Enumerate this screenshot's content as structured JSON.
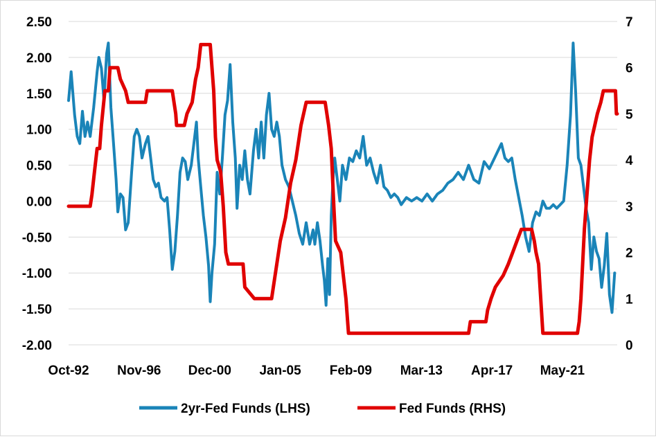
{
  "chart_data": {
    "type": "line",
    "left_axis": {
      "label": "",
      "ylim": [
        -2.0,
        2.5
      ],
      "ticks": [
        "2.50",
        "2.00",
        "1.50",
        "1.00",
        "0.50",
        "0.00",
        "-0.50",
        "-1.00",
        "-1.50",
        "-2.00"
      ]
    },
    "right_axis": {
      "label": "",
      "ylim": [
        0,
        7
      ],
      "ticks": [
        "7",
        "6",
        "5",
        "4",
        "3",
        "2",
        "1",
        "0"
      ]
    },
    "x_axis": {
      "label": "",
      "range": [
        1992.75,
        2024.5
      ],
      "tick_labels": [
        "Oct-92",
        "Nov-96",
        "Dec-00",
        "Jan-05",
        "Feb-09",
        "Mar-13",
        "Apr-17",
        "May-21"
      ],
      "tick_values": [
        1992.75,
        1996.83,
        2000.92,
        2005.0,
        2009.08,
        2013.17,
        2017.25,
        2021.33
      ]
    },
    "grid": "horizontal",
    "legend_position": "bottom",
    "series": [
      {
        "name": "2yr-Fed Funds (LHS)",
        "axis": "left",
        "color": "#1a84b8",
        "points": [
          [
            1992.75,
            1.4
          ],
          [
            1992.9,
            1.8
          ],
          [
            1993.1,
            1.2
          ],
          [
            1993.25,
            0.9
          ],
          [
            1993.4,
            0.8
          ],
          [
            1993.55,
            1.25
          ],
          [
            1993.7,
            0.9
          ],
          [
            1993.85,
            1.1
          ],
          [
            1994.0,
            0.9
          ],
          [
            1994.2,
            1.3
          ],
          [
            1994.4,
            1.8
          ],
          [
            1994.5,
            2.0
          ],
          [
            1994.65,
            1.85
          ],
          [
            1994.8,
            1.4
          ],
          [
            1994.95,
            2.05
          ],
          [
            1995.05,
            2.2
          ],
          [
            1995.2,
            1.3
          ],
          [
            1995.35,
            0.8
          ],
          [
            1995.5,
            0.3
          ],
          [
            1995.6,
            -0.15
          ],
          [
            1995.75,
            0.1
          ],
          [
            1995.9,
            0.05
          ],
          [
            1996.05,
            -0.4
          ],
          [
            1996.2,
            -0.3
          ],
          [
            1996.4,
            0.4
          ],
          [
            1996.55,
            0.9
          ],
          [
            1996.7,
            1.0
          ],
          [
            1996.85,
            0.9
          ],
          [
            1997.0,
            0.6
          ],
          [
            1997.2,
            0.8
          ],
          [
            1997.35,
            0.9
          ],
          [
            1997.5,
            0.6
          ],
          [
            1997.65,
            0.3
          ],
          [
            1997.8,
            0.2
          ],
          [
            1997.95,
            0.25
          ],
          [
            1998.1,
            0.05
          ],
          [
            1998.3,
            0.0
          ],
          [
            1998.45,
            0.05
          ],
          [
            1998.6,
            -0.4
          ],
          [
            1998.75,
            -0.95
          ],
          [
            1998.9,
            -0.7
          ],
          [
            1999.05,
            -0.2
          ],
          [
            1999.2,
            0.4
          ],
          [
            1999.35,
            0.6
          ],
          [
            1999.5,
            0.55
          ],
          [
            1999.65,
            0.3
          ],
          [
            1999.85,
            0.5
          ],
          [
            2000.05,
            0.9
          ],
          [
            2000.15,
            1.1
          ],
          [
            2000.25,
            0.6
          ],
          [
            2000.4,
            0.2
          ],
          [
            2000.55,
            -0.2
          ],
          [
            2000.7,
            -0.5
          ],
          [
            2000.85,
            -0.9
          ],
          [
            2000.95,
            -1.4
          ],
          [
            2001.05,
            -1.0
          ],
          [
            2001.2,
            -0.6
          ],
          [
            2001.35,
            0.4
          ],
          [
            2001.5,
            0.1
          ],
          [
            2001.65,
            0.6
          ],
          [
            2001.8,
            1.2
          ],
          [
            2001.95,
            1.4
          ],
          [
            2002.1,
            1.9
          ],
          [
            2002.25,
            1.1
          ],
          [
            2002.4,
            0.6
          ],
          [
            2002.5,
            -0.1
          ],
          [
            2002.65,
            0.5
          ],
          [
            2002.8,
            0.3
          ],
          [
            2002.95,
            0.7
          ],
          [
            2003.1,
            0.3
          ],
          [
            2003.25,
            0.1
          ],
          [
            2003.45,
            0.7
          ],
          [
            2003.6,
            1.0
          ],
          [
            2003.75,
            0.6
          ],
          [
            2003.9,
            1.1
          ],
          [
            2004.05,
            0.6
          ],
          [
            2004.2,
            1.2
          ],
          [
            2004.35,
            1.5
          ],
          [
            2004.5,
            1.0
          ],
          [
            2004.65,
            0.9
          ],
          [
            2004.8,
            1.1
          ],
          [
            2004.95,
            0.9
          ],
          [
            2005.1,
            0.5
          ],
          [
            2005.3,
            0.3
          ],
          [
            2005.5,
            0.2
          ],
          [
            2005.7,
            0.0
          ],
          [
            2005.9,
            -0.2
          ],
          [
            2006.1,
            -0.45
          ],
          [
            2006.3,
            -0.6
          ],
          [
            2006.5,
            -0.3
          ],
          [
            2006.7,
            -0.6
          ],
          [
            2006.9,
            -0.4
          ],
          [
            2007.0,
            -0.6
          ],
          [
            2007.15,
            -0.3
          ],
          [
            2007.3,
            -0.55
          ],
          [
            2007.45,
            -0.9
          ],
          [
            2007.55,
            -1.1
          ],
          [
            2007.65,
            -1.45
          ],
          [
            2007.75,
            -0.8
          ],
          [
            2007.85,
            -1.3
          ],
          [
            2007.95,
            -0.2
          ],
          [
            2008.05,
            0.3
          ],
          [
            2008.15,
            0.6
          ],
          [
            2008.3,
            0.3
          ],
          [
            2008.45,
            0.0
          ],
          [
            2008.6,
            0.5
          ],
          [
            2008.8,
            0.3
          ],
          [
            2009.0,
            0.6
          ],
          [
            2009.2,
            0.55
          ],
          [
            2009.4,
            0.7
          ],
          [
            2009.6,
            0.6
          ],
          [
            2009.8,
            0.9
          ],
          [
            2010.0,
            0.5
          ],
          [
            2010.2,
            0.6
          ],
          [
            2010.4,
            0.4
          ],
          [
            2010.6,
            0.25
          ],
          [
            2010.8,
            0.5
          ],
          [
            2011.0,
            0.2
          ],
          [
            2011.2,
            0.15
          ],
          [
            2011.4,
            0.05
          ],
          [
            2011.6,
            0.1
          ],
          [
            2011.8,
            0.05
          ],
          [
            2012.0,
            -0.05
          ],
          [
            2012.3,
            0.05
          ],
          [
            2012.6,
            0.0
          ],
          [
            2012.9,
            0.05
          ],
          [
            2013.2,
            0.0
          ],
          [
            2013.5,
            0.1
          ],
          [
            2013.8,
            0.0
          ],
          [
            2014.1,
            0.1
          ],
          [
            2014.4,
            0.15
          ],
          [
            2014.7,
            0.25
          ],
          [
            2015.0,
            0.3
          ],
          [
            2015.3,
            0.4
          ],
          [
            2015.6,
            0.3
          ],
          [
            2015.9,
            0.5
          ],
          [
            2016.2,
            0.3
          ],
          [
            2016.5,
            0.25
          ],
          [
            2016.8,
            0.55
          ],
          [
            2017.1,
            0.45
          ],
          [
            2017.4,
            0.6
          ],
          [
            2017.6,
            0.7
          ],
          [
            2017.8,
            0.8
          ],
          [
            2018.0,
            0.6
          ],
          [
            2018.2,
            0.55
          ],
          [
            2018.4,
            0.6
          ],
          [
            2018.6,
            0.3
          ],
          [
            2018.8,
            0.05
          ],
          [
            2019.0,
            -0.2
          ],
          [
            2019.2,
            -0.5
          ],
          [
            2019.4,
            -0.7
          ],
          [
            2019.6,
            -0.3
          ],
          [
            2019.8,
            -0.15
          ],
          [
            2020.0,
            -0.2
          ],
          [
            2020.2,
            0.0
          ],
          [
            2020.4,
            -0.1
          ],
          [
            2020.6,
            -0.1
          ],
          [
            2020.8,
            -0.05
          ],
          [
            2021.0,
            -0.1
          ],
          [
            2021.2,
            -0.05
          ],
          [
            2021.4,
            0.0
          ],
          [
            2021.6,
            0.5
          ],
          [
            2021.8,
            1.2
          ],
          [
            2021.95,
            2.2
          ],
          [
            2022.1,
            1.5
          ],
          [
            2022.25,
            0.6
          ],
          [
            2022.4,
            0.5
          ],
          [
            2022.55,
            0.2
          ],
          [
            2022.7,
            -0.1
          ],
          [
            2022.85,
            -0.3
          ],
          [
            2023.0,
            -0.95
          ],
          [
            2023.15,
            -0.5
          ],
          [
            2023.3,
            -0.7
          ],
          [
            2023.45,
            -0.8
          ],
          [
            2023.6,
            -1.2
          ],
          [
            2023.75,
            -0.9
          ],
          [
            2023.9,
            -0.45
          ],
          [
            2024.05,
            -1.3
          ],
          [
            2024.2,
            -1.55
          ],
          [
            2024.35,
            -1.0
          ]
        ]
      },
      {
        "name": "Fed Funds (RHS)",
        "axis": "right",
        "color": "#e00000",
        "points": [
          [
            1992.75,
            3.0
          ],
          [
            1993.0,
            3.0
          ],
          [
            1994.0,
            3.0
          ],
          [
            1994.1,
            3.25
          ],
          [
            1994.25,
            3.75
          ],
          [
            1994.4,
            4.25
          ],
          [
            1994.55,
            4.25
          ],
          [
            1994.65,
            4.75
          ],
          [
            1994.85,
            5.5
          ],
          [
            1995.05,
            5.5
          ],
          [
            1995.15,
            6.0
          ],
          [
            1995.6,
            6.0
          ],
          [
            1995.75,
            5.75
          ],
          [
            1996.05,
            5.5
          ],
          [
            1996.2,
            5.25
          ],
          [
            1997.2,
            5.25
          ],
          [
            1997.3,
            5.5
          ],
          [
            1998.75,
            5.5
          ],
          [
            1998.85,
            5.25
          ],
          [
            1998.95,
            5.0
          ],
          [
            1999.0,
            4.75
          ],
          [
            1999.45,
            4.75
          ],
          [
            1999.6,
            5.0
          ],
          [
            1999.9,
            5.25
          ],
          [
            2000.1,
            5.75
          ],
          [
            2000.25,
            6.0
          ],
          [
            2000.4,
            6.5
          ],
          [
            2000.95,
            6.5
          ],
          [
            2001.05,
            6.0
          ],
          [
            2001.15,
            5.5
          ],
          [
            2001.25,
            4.5
          ],
          [
            2001.35,
            4.0
          ],
          [
            2001.55,
            3.75
          ],
          [
            2001.7,
            3.0
          ],
          [
            2001.85,
            2.0
          ],
          [
            2002.0,
            1.75
          ],
          [
            2002.85,
            1.75
          ],
          [
            2002.95,
            1.25
          ],
          [
            2003.5,
            1.0
          ],
          [
            2004.5,
            1.0
          ],
          [
            2004.6,
            1.25
          ],
          [
            2004.8,
            1.75
          ],
          [
            2005.0,
            2.25
          ],
          [
            2005.3,
            2.75
          ],
          [
            2005.6,
            3.5
          ],
          [
            2005.9,
            4.0
          ],
          [
            2006.2,
            4.75
          ],
          [
            2006.5,
            5.25
          ],
          [
            2007.6,
            5.25
          ],
          [
            2007.8,
            4.75
          ],
          [
            2007.95,
            4.25
          ],
          [
            2008.1,
            3.0
          ],
          [
            2008.2,
            2.25
          ],
          [
            2008.5,
            2.0
          ],
          [
            2008.8,
            1.0
          ],
          [
            2008.95,
            0.25
          ],
          [
            2015.9,
            0.25
          ],
          [
            2016.0,
            0.5
          ],
          [
            2016.9,
            0.5
          ],
          [
            2017.0,
            0.75
          ],
          [
            2017.2,
            1.0
          ],
          [
            2017.45,
            1.25
          ],
          [
            2017.9,
            1.5
          ],
          [
            2018.2,
            1.75
          ],
          [
            2018.45,
            2.0
          ],
          [
            2018.7,
            2.25
          ],
          [
            2018.95,
            2.5
          ],
          [
            2019.55,
            2.5
          ],
          [
            2019.7,
            2.25
          ],
          [
            2019.8,
            2.0
          ],
          [
            2019.95,
            1.75
          ],
          [
            2020.2,
            0.25
          ],
          [
            2022.2,
            0.25
          ],
          [
            2022.3,
            0.5
          ],
          [
            2022.4,
            1.0
          ],
          [
            2022.5,
            1.75
          ],
          [
            2022.6,
            2.5
          ],
          [
            2022.75,
            3.25
          ],
          [
            2022.9,
            4.0
          ],
          [
            2023.05,
            4.5
          ],
          [
            2023.2,
            4.75
          ],
          [
            2023.35,
            5.0
          ],
          [
            2023.55,
            5.25
          ],
          [
            2023.7,
            5.5
          ],
          [
            2024.4,
            5.5
          ],
          [
            2024.45,
            5.0
          ],
          [
            2024.5,
            5.0
          ]
        ]
      }
    ]
  }
}
